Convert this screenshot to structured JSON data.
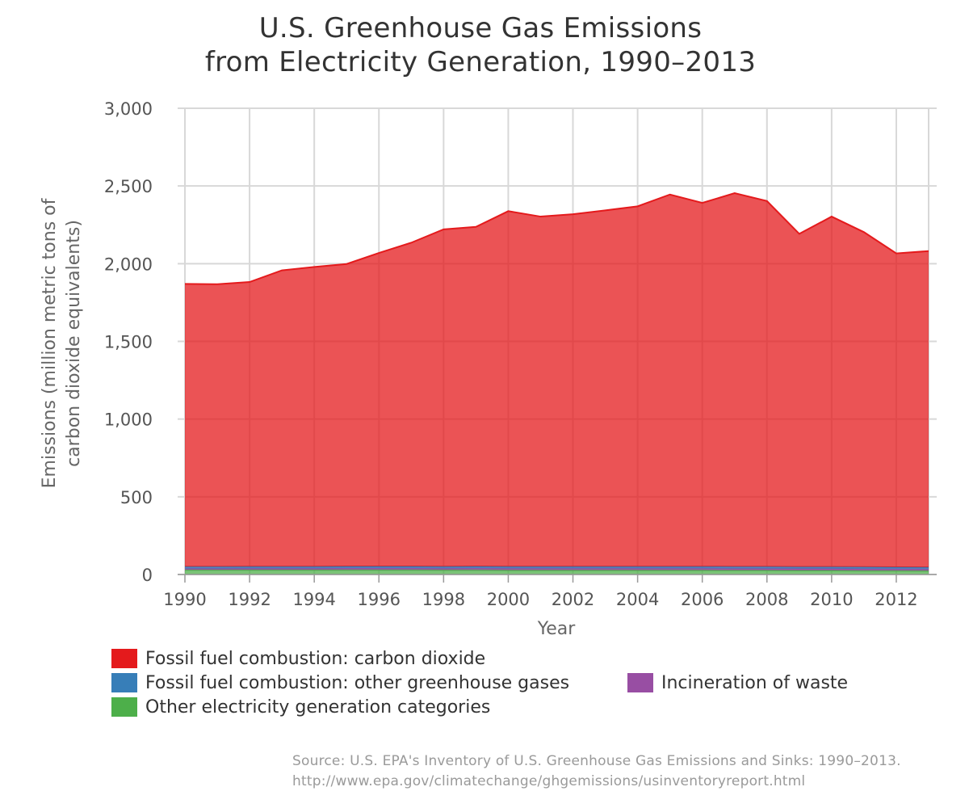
{
  "chart_data": {
    "type": "area",
    "stacked": true,
    "title": [
      "U.S. Greenhouse Gas Emissions",
      "from Electricity Generation, 1990–2013"
    ],
    "xlabel": "Year",
    "ylabel": [
      "Emissions (million metric tons of",
      "carbon dioxide equivalents)"
    ],
    "x": [
      1990,
      1991,
      1992,
      1993,
      1994,
      1995,
      1996,
      1997,
      1998,
      1999,
      2000,
      2001,
      2002,
      2003,
      2004,
      2005,
      2006,
      2007,
      2008,
      2009,
      2010,
      2011,
      2012,
      2013
    ],
    "x_ticks": [
      "1990",
      "1992",
      "1994",
      "1996",
      "1998",
      "2000",
      "2002",
      "2004",
      "2006",
      "2008",
      "2010",
      "2012"
    ],
    "xlim": [
      1990,
      2013
    ],
    "ylim": [
      0,
      3000
    ],
    "y_ticks": [
      "0",
      "500",
      "1,000",
      "1,500",
      "2,000",
      "2,500",
      "3,000"
    ],
    "y_tick_values": [
      0,
      500,
      1000,
      1500,
      2000,
      2500,
      3000
    ],
    "grid": true,
    "series": [
      {
        "name": "Other electricity generation categories",
        "color": "#4daf4a",
        "values": [
          30,
          30,
          30,
          30,
          30,
          30,
          30,
          30,
          29,
          29,
          28,
          28,
          28,
          28,
          28,
          28,
          28,
          27,
          27,
          26,
          26,
          25,
          25,
          24
        ]
      },
      {
        "name": "Incineration of waste",
        "color": "#984ea3",
        "values": [
          8,
          8,
          9,
          9,
          9,
          10,
          10,
          10,
          10,
          11,
          11,
          11,
          11,
          11,
          11,
          11,
          11,
          11,
          11,
          11,
          11,
          11,
          10,
          10
        ]
      },
      {
        "name": "Fossil fuel combustion: other greenhouse gases",
        "color": "#377eb8",
        "values": [
          12,
          12,
          12,
          12,
          12,
          12,
          12,
          12,
          12,
          12,
          12,
          12,
          12,
          12,
          12,
          12,
          12,
          12,
          12,
          12,
          12,
          12,
          12,
          12
        ]
      },
      {
        "name": "Fossil fuel combustion: carbon dioxide",
        "color": "#e41a1c",
        "values": [
          1820,
          1818,
          1831,
          1906,
          1928,
          1946,
          2017,
          2083,
          2170,
          2185,
          2287,
          2252,
          2267,
          2292,
          2318,
          2394,
          2340,
          2404,
          2353,
          2143,
          2254,
          2155,
          2019,
          2035
        ]
      }
    ],
    "legend": [
      {
        "label": "Fossil fuel combustion: carbon dioxide",
        "color": "#e41a1c"
      },
      {
        "label": "Fossil fuel combustion: other greenhouse gases",
        "color": "#377eb8"
      },
      {
        "label": "Incineration of waste",
        "color": "#984ea3"
      },
      {
        "label": "Other electricity generation categories",
        "color": "#4daf4a"
      }
    ],
    "legend_placement": "bottom"
  },
  "source": [
    "Source: U.S. EPA's Inventory of U.S. Greenhouse Gas Emissions and Sinks: 1990–2013.",
    "http://www.epa.gov/climatechange/ghgemissions/usinventoryreport.html"
  ]
}
